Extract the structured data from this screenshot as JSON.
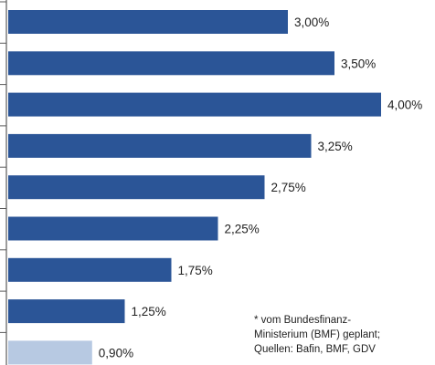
{
  "chart_data": {
    "type": "bar",
    "orientation": "horizontal",
    "values": [
      3.0,
      3.5,
      4.0,
      3.25,
      2.75,
      2.25,
      1.75,
      1.25,
      0.9
    ],
    "value_labels": [
      "3,00%",
      "3,50%",
      "4,00%",
      "3,25%",
      "2,75%",
      "2,25%",
      "1,75%",
      "1,25%",
      "0,90%"
    ],
    "highlighted_bar_index": 8,
    "xlim": [
      0,
      4.0
    ],
    "grid": false,
    "title": "",
    "xlabel": "",
    "ylabel": ""
  },
  "colors": {
    "bar": "#2b5597",
    "bar_highlight": "#b7c9e2",
    "axis": "#5a5a5a",
    "text": "#1f1f1f"
  },
  "note": {
    "lines": [
      "* vom Bundesfinanz-",
      "Ministerium (BMF) geplant;",
      "Quellen: Bafin, BMF,  GDV"
    ]
  }
}
